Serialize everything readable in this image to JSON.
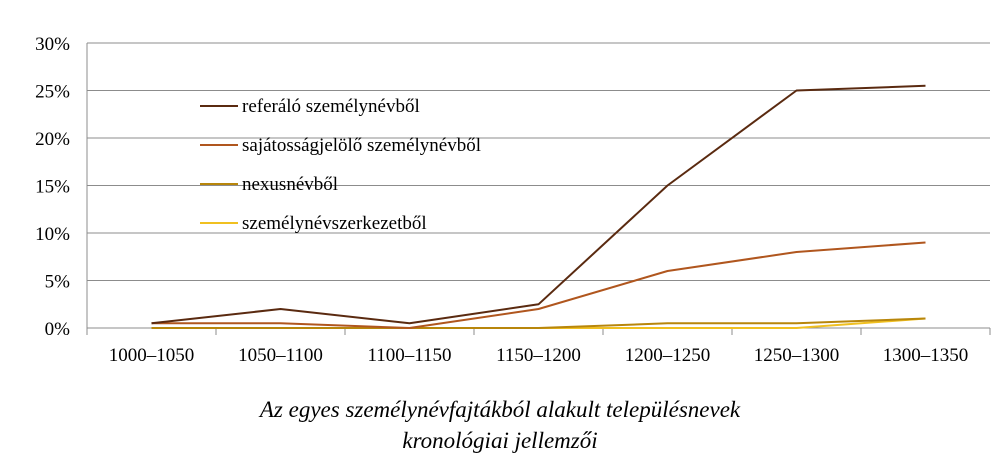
{
  "chart_data": {
    "type": "line",
    "categories": [
      "1000–1050",
      "1050–1100",
      "1100–1150",
      "1150–1200",
      "1200–1250",
      "1250–1300",
      "1300–1350"
    ],
    "y_tick_labels": [
      "0%",
      "5%",
      "10%",
      "15%",
      "20%",
      "25%",
      "30%"
    ],
    "ylim": [
      0,
      30
    ],
    "y_unit": "%",
    "grid": "horizontal",
    "legend_position": "upper-left inside plot",
    "series": [
      {
        "name": "referáló személynévből",
        "color": "#5a2a10",
        "values": [
          0.5,
          2.0,
          0.5,
          2.5,
          15.0,
          25.0,
          25.5
        ]
      },
      {
        "name": "sajátosságjelölő személynévből",
        "color": "#b0561e",
        "values": [
          0.5,
          0.5,
          0.0,
          2.0,
          6.0,
          8.0,
          9.0
        ]
      },
      {
        "name": "nexusnévből",
        "color": "#b8860b",
        "values": [
          0.0,
          0.0,
          0.0,
          0.0,
          0.5,
          0.5,
          1.0
        ]
      },
      {
        "name": "személynévszerkezetből",
        "color": "#f0c020",
        "values": [
          0.0,
          0.0,
          0.0,
          0.0,
          0.0,
          0.0,
          1.0
        ]
      }
    ],
    "caption": [
      "Az egyes személynévfajtákból alakult településnevek",
      "kronológiai jellemzői"
    ]
  }
}
